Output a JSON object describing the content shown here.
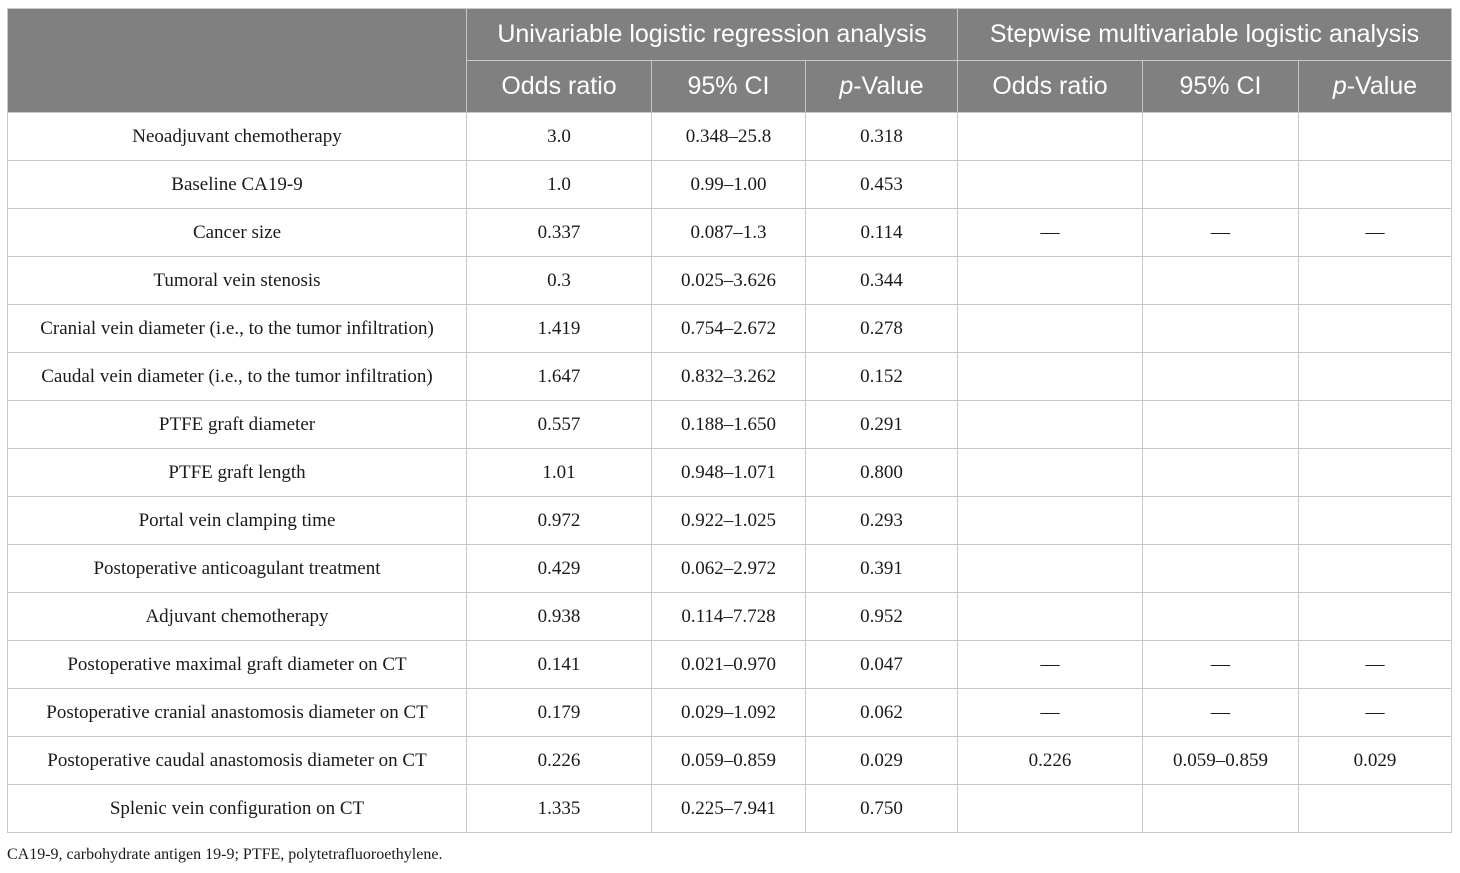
{
  "header": {
    "group_univariable": "Univariable logistic regression analysis",
    "group_multivariable": "Stepwise multivariable logistic analysis",
    "odds_ratio": "Odds ratio",
    "ci": "95% CI",
    "p_prefix": "p",
    "p_suffix": "-Value"
  },
  "rows": [
    [
      "Neoadjuvant chemotherapy",
      "3.0",
      "0.348–25.8",
      "0.318",
      "",
      "",
      ""
    ],
    [
      "Baseline CA19-9",
      "1.0",
      "0.99–1.00",
      "0.453",
      "",
      "",
      ""
    ],
    [
      "Cancer size",
      "0.337",
      "0.087–1.3",
      "0.114",
      "—",
      "—",
      "—"
    ],
    [
      "Tumoral vein stenosis",
      "0.3",
      "0.025–3.626",
      "0.344",
      "",
      "",
      ""
    ],
    [
      "Cranial vein diameter (i.e., to the tumor infiltration)",
      "1.419",
      "0.754–2.672",
      "0.278",
      "",
      "",
      ""
    ],
    [
      "Caudal vein diameter (i.e., to the tumor infiltration)",
      "1.647",
      "0.832–3.262",
      "0.152",
      "",
      "",
      ""
    ],
    [
      "PTFE graft diameter",
      "0.557",
      "0.188–1.650",
      "0.291",
      "",
      "",
      ""
    ],
    [
      "PTFE graft length",
      "1.01",
      "0.948–1.071",
      "0.800",
      "",
      "",
      ""
    ],
    [
      "Portal vein clamping time",
      "0.972",
      "0.922–1.025",
      "0.293",
      "",
      "",
      ""
    ],
    [
      "Postoperative anticoagulant treatment",
      "0.429",
      "0.062–2.972",
      "0.391",
      "",
      "",
      ""
    ],
    [
      "Adjuvant chemotherapy",
      "0.938",
      "0.114–7.728",
      "0.952",
      "",
      "",
      ""
    ],
    [
      "Postoperative maximal graft diameter on CT",
      "0.141",
      "0.021–0.970",
      "0.047",
      "—",
      "—",
      "—"
    ],
    [
      "Postoperative cranial anastomosis diameter on CT",
      "0.179",
      "0.029–1.092",
      "0.062",
      "—",
      "—",
      "—"
    ],
    [
      "Postoperative caudal anastomosis diameter on CT",
      "0.226",
      "0.059–0.859",
      "0.029",
      "0.226",
      "0.059–0.859",
      "0.029"
    ],
    [
      "Splenic vein configuration on CT",
      "1.335",
      "0.225–7.941",
      "0.750",
      "",
      "",
      ""
    ]
  ],
  "footnote": "CA19-9, carbohydrate antigen 19-9; PTFE, polytetrafluoroethylene."
}
